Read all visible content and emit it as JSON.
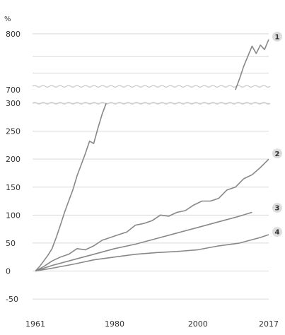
{
  "chart_data": {
    "type": "line",
    "title": "",
    "xlabel": "",
    "ylabel": "%",
    "x_ticks": [
      "1961",
      "1980",
      "2000",
      "2017"
    ],
    "xlim": [
      1961,
      2017
    ],
    "y_axis_break": {
      "lower_top": 300,
      "upper_bottom": 700
    },
    "y_ticks_lower": [
      "-50",
      "0",
      "50",
      "100",
      "150",
      "200",
      "250",
      "300"
    ],
    "y_ticks_upper": [
      "700",
      "800"
    ],
    "ylim_lower": [
      -60,
      300
    ],
    "ylim_upper": [
      690,
      810
    ],
    "grid": true,
    "colors": {
      "grid": "#d9d9d9",
      "series": "#888888",
      "text": "#333333",
      "badge": "#dddddd",
      "break": "#cccccc"
    },
    "series": [
      {
        "name": "1",
        "segments": [
          {
            "x": [
              1961,
              1962,
              1963,
              1964,
              1965,
              1966,
              1967,
              1968,
              1969,
              1970,
              1971,
              1972,
              1973,
              1974,
              1975,
              1976,
              1977,
              1978
            ],
            "y": [
              0,
              8,
              18,
              28,
              40,
              60,
              82,
              105,
              125,
              145,
              170,
              190,
              210,
              232,
              228,
              255,
              280,
              300
            ]
          },
          {
            "x": [
              2009,
              2010,
              2011,
              2012,
              2013,
              2014,
              2015,
              2016,
              2017
            ],
            "y": [
              700,
              720,
              742,
              760,
              778,
              765,
              780,
              772,
              790
            ]
          }
        ]
      },
      {
        "name": "2",
        "x": [
          1961,
          1963,
          1965,
          1967,
          1969,
          1971,
          1973,
          1975,
          1977,
          1979,
          1981,
          1983,
          1985,
          1987,
          1989,
          1991,
          1993,
          1995,
          1997,
          1999,
          2001,
          2003,
          2005,
          2007,
          2009,
          2011,
          2013,
          2015,
          2017
        ],
        "y": [
          0,
          8,
          18,
          25,
          30,
          40,
          38,
          45,
          55,
          60,
          65,
          70,
          82,
          85,
          90,
          100,
          98,
          105,
          108,
          118,
          125,
          125,
          130,
          145,
          150,
          165,
          172,
          185,
          200
        ]
      },
      {
        "name": "3",
        "x": [
          1961,
          1965,
          1970,
          1975,
          1980,
          1985,
          1990,
          1995,
          2000,
          2005,
          2010,
          2013
        ],
        "y": [
          0,
          10,
          20,
          30,
          40,
          48,
          58,
          68,
          78,
          88,
          98,
          105
        ]
      },
      {
        "name": "4",
        "x": [
          1961,
          1965,
          1970,
          1975,
          1980,
          1985,
          1990,
          1995,
          2000,
          2005,
          2010,
          2015,
          2017
        ],
        "y": [
          0,
          5,
          12,
          20,
          25,
          30,
          33,
          35,
          38,
          45,
          50,
          60,
          65
        ]
      }
    ]
  }
}
